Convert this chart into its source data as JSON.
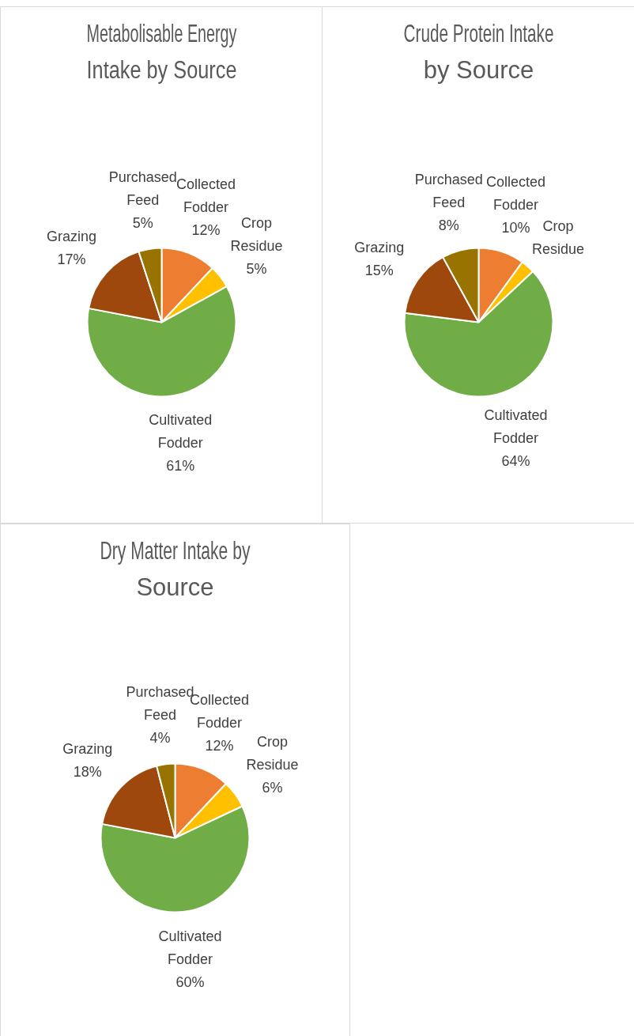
{
  "chart_data": [
    {
      "type": "pie",
      "title": "Metabolisable Energy Intake by Source",
      "categories": [
        "Collected Fodder",
        "Crop Residue",
        "Cultivated Fodder",
        "Grazing",
        "Purchased Feed"
      ],
      "values": [
        12,
        5,
        61,
        17,
        5
      ],
      "value_labels": [
        "12%",
        "5%",
        "61%",
        "17%",
        "5%"
      ],
      "colors": [
        "#ed7d31",
        "#ffc000",
        "#70ad47",
        "#9e480e",
        "#997300"
      ],
      "legend": false
    },
    {
      "type": "pie",
      "title": "Crude Protein Intake by Source",
      "categories": [
        "Collected Fodder",
        "Crop Residue",
        "Cultivated Fodder",
        "Grazing",
        "Purchased Feed"
      ],
      "values": [
        10,
        3,
        64,
        15,
        8
      ],
      "value_labels": [
        "10%",
        null,
        "64%",
        "15%",
        "8%"
      ],
      "colors": [
        "#ed7d31",
        "#ffc000",
        "#70ad47",
        "#9e480e",
        "#997300"
      ],
      "legend": false
    },
    {
      "type": "pie",
      "title": "Dry Matter Intake by Source",
      "categories": [
        "Collected Fodder",
        "Crop Residue",
        "Cultivated Fodder",
        "Grazing",
        "Purchased Feed"
      ],
      "values": [
        12,
        6,
        60,
        18,
        4
      ],
      "value_labels": [
        "12%",
        "6%",
        "60%",
        "18%",
        "4%"
      ],
      "colors": [
        "#ed7d31",
        "#ffc000",
        "#70ad47",
        "#9e480e",
        "#997300"
      ],
      "legend": false
    }
  ]
}
